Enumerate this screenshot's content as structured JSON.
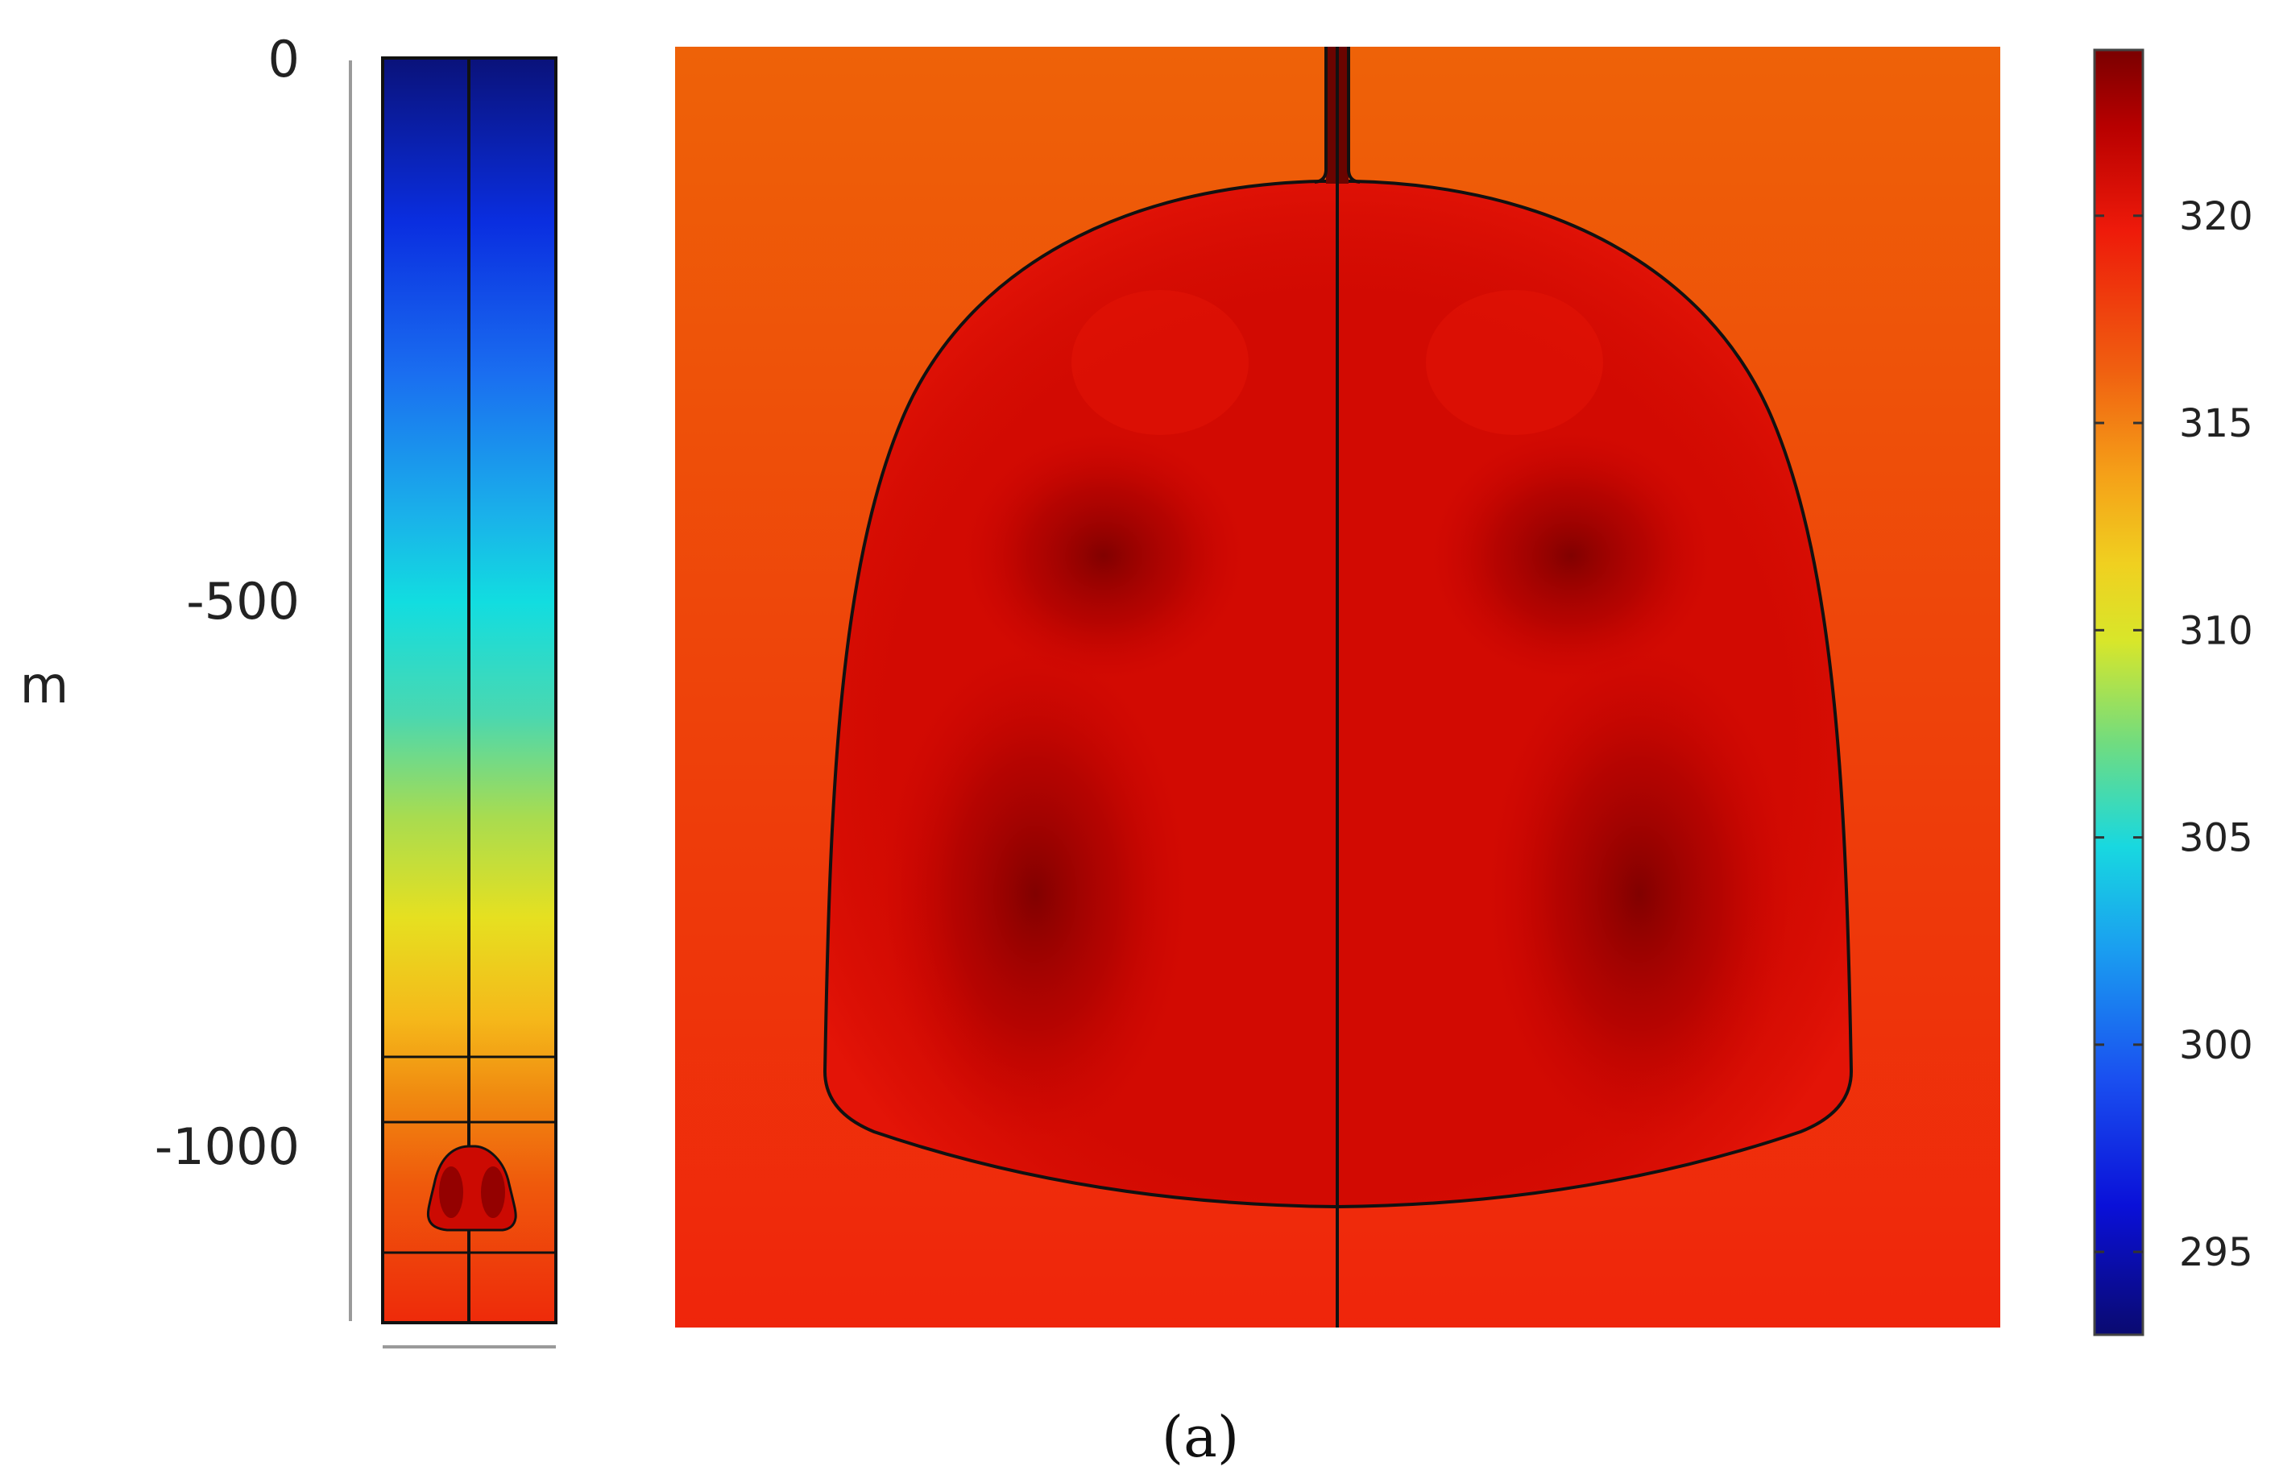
{
  "chart_data": [
    {
      "type": "heatmap",
      "panel": "left-column-model",
      "ylabel": "m",
      "ylim": [
        -1170,
        0
      ],
      "yticks": [
        {
          "value": 0,
          "label": "0"
        },
        {
          "value": -500,
          "label": "-500"
        },
        {
          "value": -1000,
          "label": "-1000"
        }
      ]
    },
    {
      "type": "heatmap",
      "panel": "cavern-zoom",
      "colorbar": {
        "range": [
          293,
          324
        ],
        "colors": [
          "#0a0a78",
          "#0000ff",
          "#00a2ff",
          "#00e6e6",
          "#66e07a",
          "#e8e622",
          "#f5b21a",
          "#f07a0a",
          "#f02a0a",
          "#c80000",
          "#7a0000"
        ],
        "ticks": [
          {
            "value": 320,
            "label": "320"
          },
          {
            "value": 315,
            "label": "315"
          },
          {
            "value": 310,
            "label": "310"
          },
          {
            "value": 305,
            "label": "305"
          },
          {
            "value": 300,
            "label": "300"
          },
          {
            "value": 295,
            "label": "295"
          }
        ]
      }
    }
  ],
  "caption": "(a)"
}
